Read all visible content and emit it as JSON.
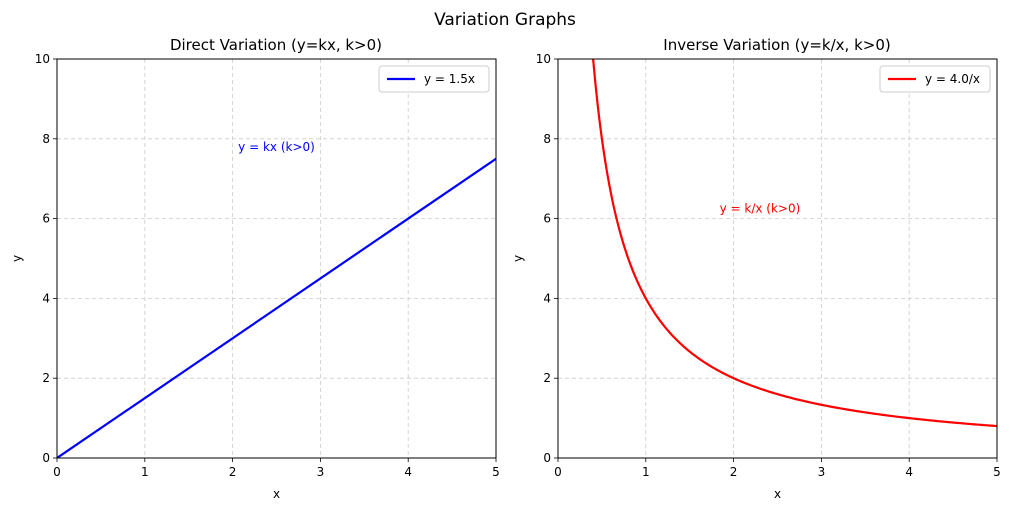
{
  "figure": {
    "title": "Variation Graphs"
  },
  "chart_data": [
    {
      "type": "line",
      "title": "Direct Variation (y=kx, k>0)",
      "xlabel": "x",
      "ylabel": "y",
      "xlim": [
        0,
        5
      ],
      "ylim": [
        0,
        10
      ],
      "xticks": [
        "0",
        "1",
        "2",
        "3",
        "4",
        "5"
      ],
      "yticks": [
        "0",
        "2",
        "4",
        "6",
        "8",
        "10"
      ],
      "grid": true,
      "legend_position": "top-right",
      "series": [
        {
          "name": "y = 1.5x",
          "color": "#0000ff",
          "formula": "y = 1.5x",
          "k": 1.5,
          "x": [
            0,
            5
          ],
          "y": [
            0,
            7.5
          ]
        }
      ],
      "annotation": {
        "text": "y = kx (k>0)",
        "color": "#0000ff",
        "x": 2.5,
        "y": 7.7
      }
    },
    {
      "type": "line",
      "title": "Inverse Variation (y=k/x, k>0)",
      "xlabel": "x",
      "ylabel": "y",
      "xlim": [
        0,
        5
      ],
      "ylim": [
        0,
        10
      ],
      "xticks": [
        "0",
        "1",
        "2",
        "3",
        "4",
        "5"
      ],
      "yticks": [
        "0",
        "2",
        "4",
        "6",
        "8",
        "10"
      ],
      "grid": true,
      "legend_position": "top-right",
      "series": [
        {
          "name": "y = 4.0/x",
          "color": "#ff0000",
          "formula": "y = 4.0/x",
          "k": 4.0,
          "x": [
            0.4,
            0.5,
            0.75,
            1,
            1.5,
            2,
            2.5,
            3,
            3.5,
            4,
            4.5,
            5
          ],
          "y": [
            10,
            8,
            5.33,
            4,
            2.67,
            2,
            1.6,
            1.33,
            1.14,
            1,
            0.89,
            0.8
          ]
        }
      ],
      "annotation": {
        "text": "y = k/x (k>0)",
        "color": "#ff0000",
        "x": 2.3,
        "y": 6.15
      }
    }
  ]
}
